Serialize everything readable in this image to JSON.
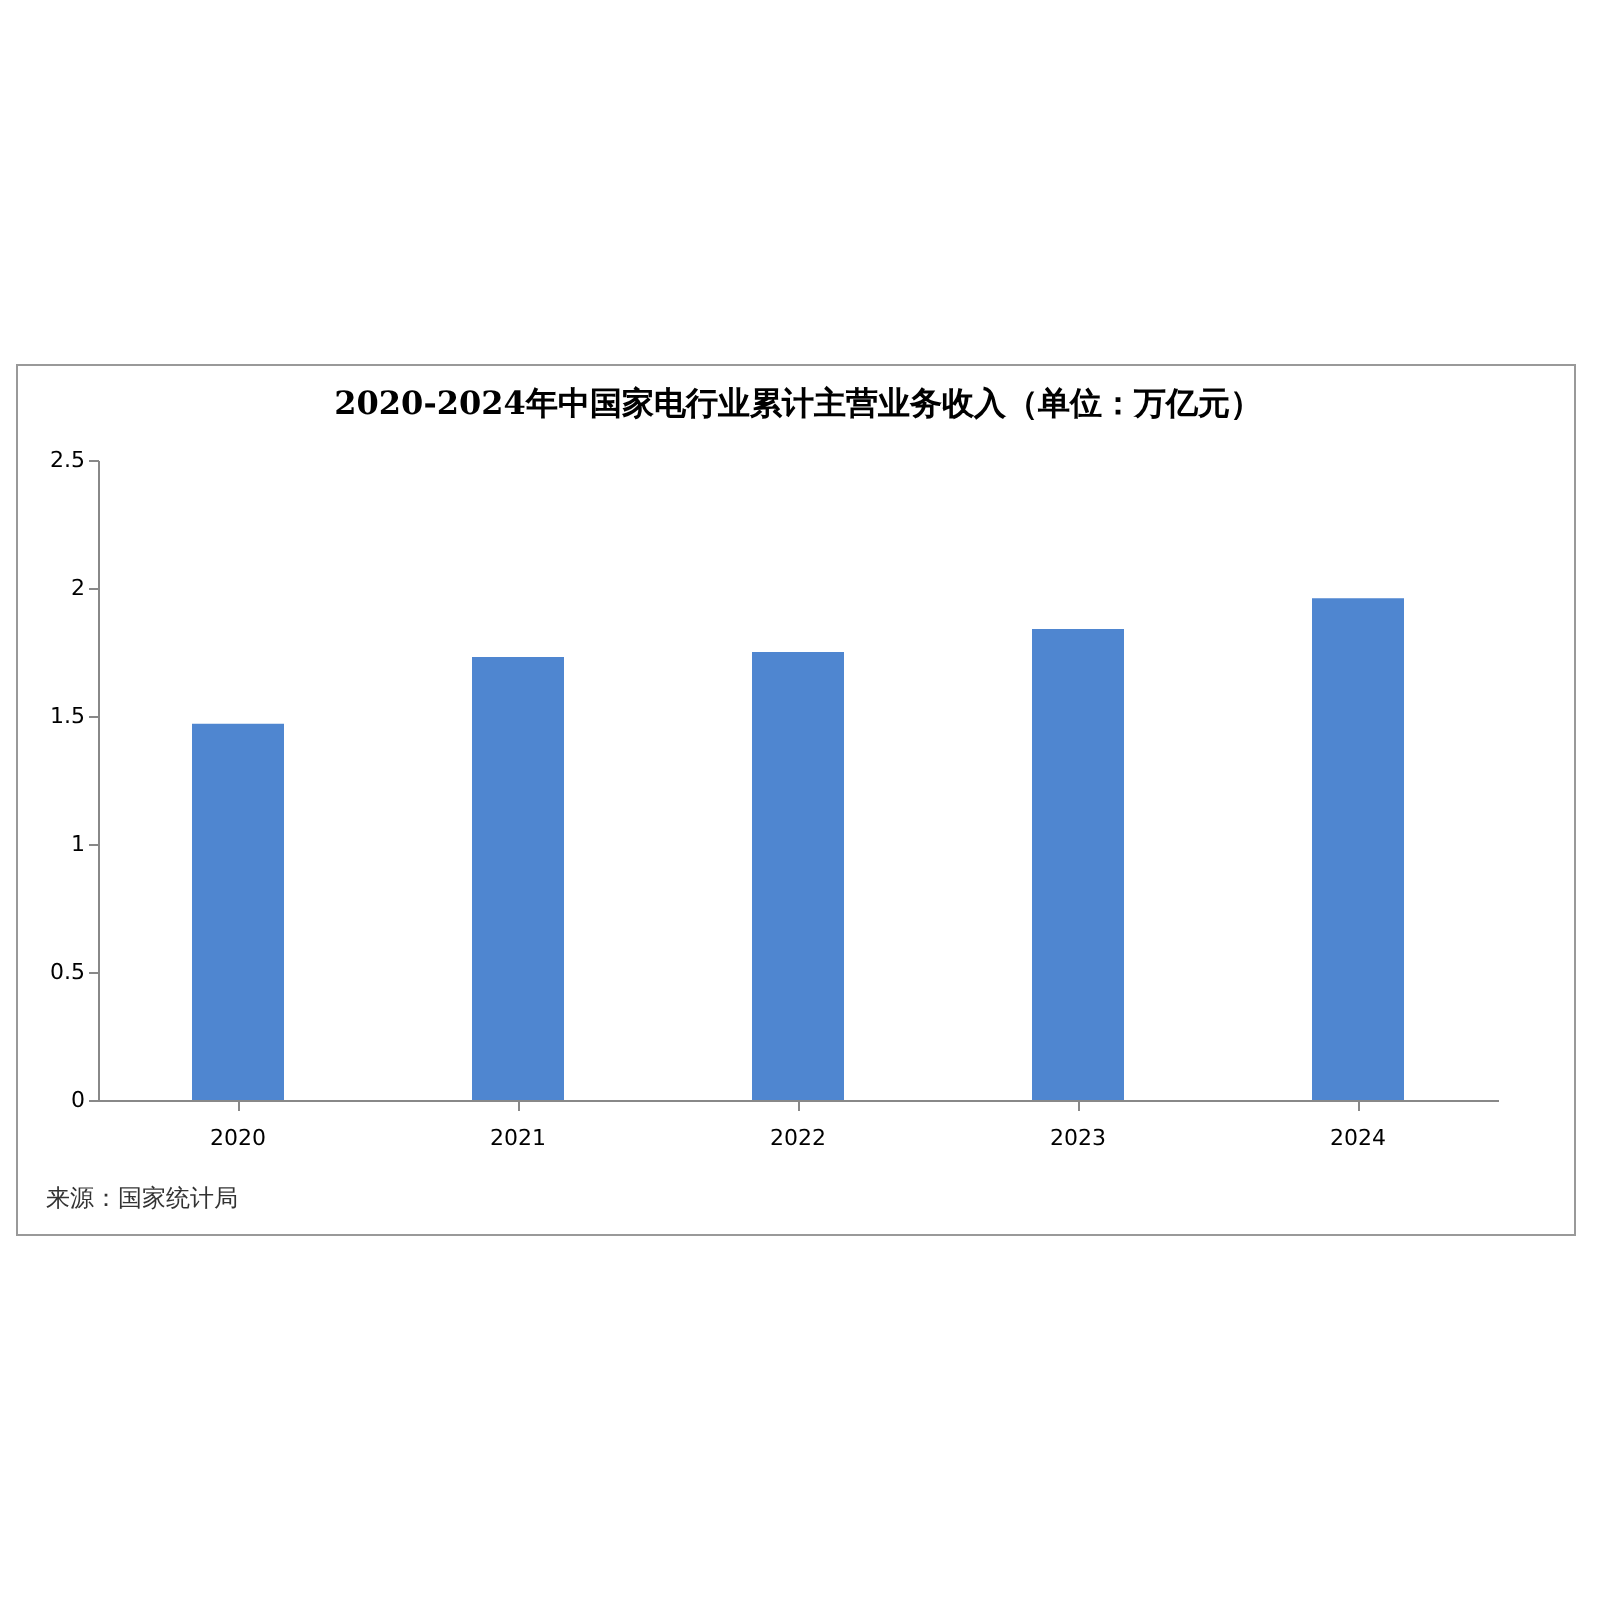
{
  "chart_data": {
    "type": "bar",
    "title": "2020-2024年中国家电行业累计主营业务收入（单位：万亿元）",
    "categories": [
      "2020",
      "2021",
      "2022",
      "2023",
      "2024"
    ],
    "values": [
      1.47,
      1.73,
      1.75,
      1.84,
      1.96
    ],
    "color": "#4f86d0",
    "ylim": [
      0,
      2.5
    ],
    "yticks": [
      0,
      0.5,
      1,
      1.5,
      2,
      2.5
    ],
    "grid": false,
    "legend": false,
    "annotations": [
      "来源：国家统计局"
    ]
  }
}
